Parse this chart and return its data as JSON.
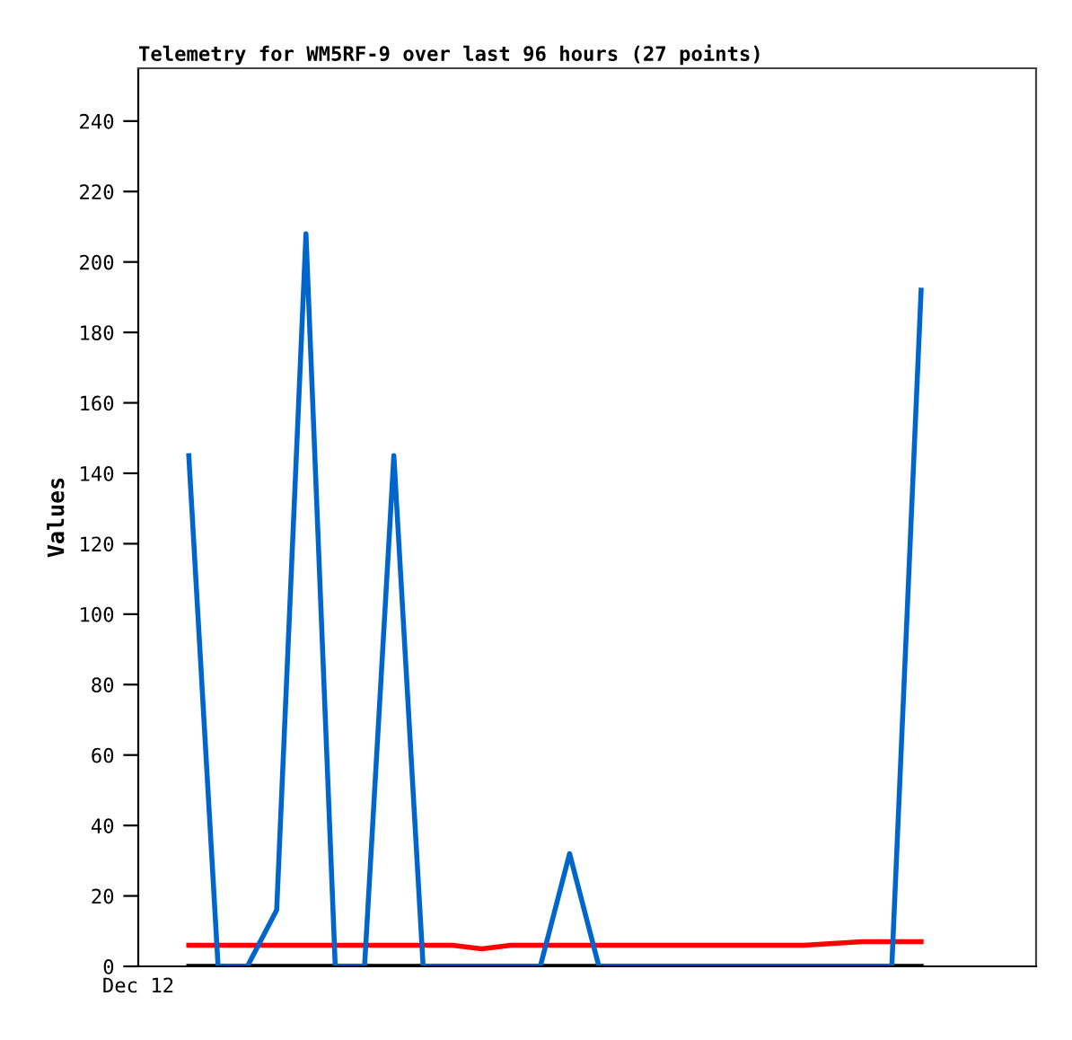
{
  "chart_data": {
    "type": "line",
    "title": "Telemetry for WM5RF-9 over last 96 hours (27 points)",
    "ylabel": "Values",
    "annotations": [
      "Dec 12"
    ],
    "categories": [
      null,
      null,
      null,
      null,
      null,
      null,
      null,
      null,
      null,
      null,
      null,
      null,
      null,
      null,
      null,
      null,
      null,
      null,
      null,
      null,
      null,
      null,
      null,
      null,
      null,
      null
    ],
    "ylim": [
      0,
      255
    ],
    "yticks": [
      0,
      20,
      40,
      60,
      80,
      100,
      120,
      140,
      160,
      180,
      200,
      220,
      240
    ],
    "grid": false,
    "marker": "none",
    "line_style": "solid",
    "series": [
      {
        "color": "#000000",
        "values": [
          0,
          0,
          0,
          0,
          0,
          0,
          0,
          0,
          0,
          0,
          0,
          0,
          0,
          0,
          0,
          0,
          0,
          0,
          0,
          0,
          0,
          0,
          0,
          0,
          0,
          0
        ]
      },
      {
        "color": "#ff0000",
        "values": [
          6,
          6,
          6,
          6,
          6,
          6,
          6,
          6,
          6,
          6,
          5,
          6,
          6,
          6,
          6,
          6,
          6,
          6,
          6,
          6,
          6,
          6,
          6.5,
          7,
          7,
          7
        ]
      },
      {
        "color": "#0066cc",
        "values": [
          145,
          0,
          0,
          16,
          208,
          0,
          0,
          145,
          0,
          0,
          0,
          0,
          0,
          32,
          0,
          0,
          0,
          0,
          0,
          0,
          0,
          0,
          0,
          0,
          0,
          192
        ]
      }
    ]
  }
}
